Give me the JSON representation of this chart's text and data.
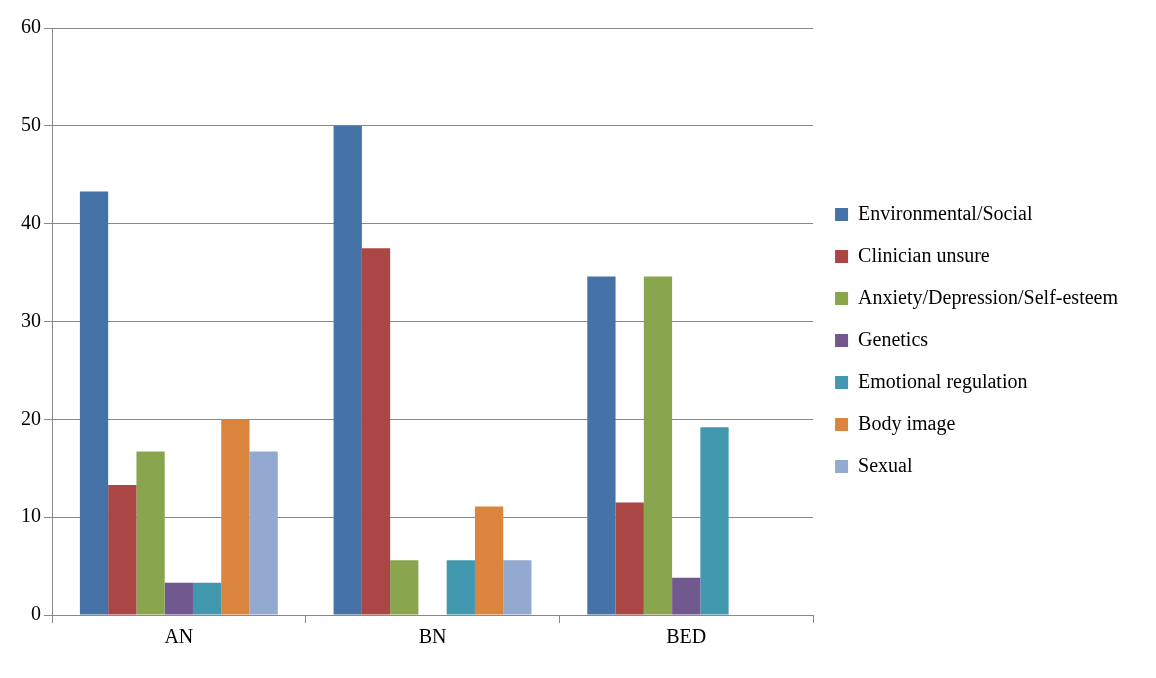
{
  "chart_data": {
    "type": "bar",
    "categories": [
      "AN",
      "BN",
      "BED"
    ],
    "series": [
      {
        "name": "Environmental/Social",
        "color": "#4572a7",
        "values": [
          43.3,
          50,
          34.6
        ]
      },
      {
        "name": "Clinician unsure",
        "color": "#aa4643",
        "values": [
          13.3,
          37.5,
          11.5
        ]
      },
      {
        "name": "Anxiety/Depression/Self-esteem",
        "color": "#89a54e",
        "values": [
          16.7,
          5.6,
          34.6
        ]
      },
      {
        "name": "Genetics",
        "color": "#71588f",
        "values": [
          3.3,
          0,
          3.8
        ]
      },
      {
        "name": "Emotional regulation",
        "color": "#4198af",
        "values": [
          3.3,
          5.6,
          19.2
        ]
      },
      {
        "name": "Body image",
        "color": "#db843d",
        "values": [
          20,
          11.1,
          0
        ]
      },
      {
        "name": "Sexual",
        "color": "#93a9cf",
        "values": [
          16.7,
          5.6,
          0
        ]
      }
    ],
    "ylim": [
      0,
      60
    ],
    "yticks": [
      0,
      10,
      20,
      30,
      40,
      50,
      60
    ],
    "grid": "y",
    "legend": "right"
  }
}
